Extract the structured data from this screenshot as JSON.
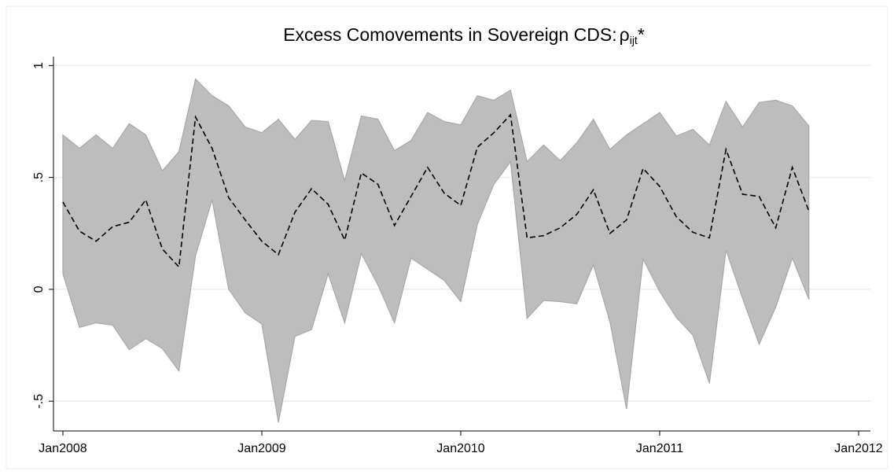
{
  "chart_data": {
    "type": "line",
    "title": "Excess Comovements in Sovereign CDS:",
    "title_symbol": "ρ",
    "title_subscript": "ijt",
    "title_suffix": "*",
    "x": [
      "2008-01",
      "2008-02",
      "2008-03",
      "2008-04",
      "2008-05",
      "2008-06",
      "2008-07",
      "2008-08",
      "2008-09",
      "2008-10",
      "2008-11",
      "2008-12",
      "2009-01",
      "2009-02",
      "2009-03",
      "2009-04",
      "2009-05",
      "2009-06",
      "2009-07",
      "2009-08",
      "2009-09",
      "2009-10",
      "2009-11",
      "2009-12",
      "2010-01",
      "2010-02",
      "2010-03",
      "2010-04",
      "2010-05",
      "2010-06",
      "2010-07",
      "2010-08",
      "2010-09",
      "2010-10",
      "2010-11",
      "2010-12",
      "2011-01",
      "2011-02",
      "2011-03",
      "2011-04",
      "2011-05",
      "2011-06",
      "2011-07",
      "2011-08",
      "2011-09",
      "2011-10"
    ],
    "band": {
      "color": "#bdbdbd",
      "edge_color": "#a8a8a8",
      "upper": [
        0.69,
        0.63,
        0.69,
        0.63,
        0.74,
        0.69,
        0.53,
        0.615,
        0.94,
        0.865,
        0.82,
        0.725,
        0.7,
        0.76,
        0.67,
        0.755,
        0.75,
        0.485,
        0.775,
        0.76,
        0.62,
        0.665,
        0.79,
        0.75,
        0.735,
        0.865,
        0.845,
        0.89,
        0.57,
        0.645,
        0.575,
        0.655,
        0.76,
        0.625,
        0.69,
        0.74,
        0.79,
        0.685,
        0.715,
        0.645,
        0.84,
        0.725,
        0.835,
        0.845,
        0.82,
        0.73
      ],
      "lower": [
        0.07,
        -0.17,
        -0.15,
        -0.16,
        -0.27,
        -0.22,
        -0.265,
        -0.365,
        0.15,
        0.4,
        0.0,
        -0.105,
        -0.155,
        -0.595,
        -0.21,
        -0.18,
        0.07,
        -0.15,
        0.16,
        0.02,
        -0.15,
        0.14,
        0.09,
        0.04,
        -0.055,
        0.29,
        0.47,
        0.57,
        -0.13,
        -0.05,
        -0.055,
        -0.065,
        0.11,
        -0.145,
        -0.535,
        0.135,
        -0.01,
        -0.125,
        -0.205,
        -0.42,
        0.175,
        -0.04,
        -0.245,
        -0.08,
        0.14,
        -0.045
      ]
    },
    "series": [
      {
        "color": "#000000",
        "dashed": true,
        "values": [
          0.39,
          0.26,
          0.215,
          0.28,
          0.3,
          0.4,
          0.18,
          0.1,
          0.77,
          0.63,
          0.41,
          0.31,
          0.215,
          0.155,
          0.345,
          0.45,
          0.38,
          0.22,
          0.52,
          0.47,
          0.285,
          0.415,
          0.545,
          0.43,
          0.375,
          0.635,
          0.7,
          0.78,
          0.23,
          0.24,
          0.275,
          0.335,
          0.445,
          0.25,
          0.31,
          0.54,
          0.46,
          0.325,
          0.255,
          0.23,
          0.625,
          0.425,
          0.415,
          0.275,
          0.545,
          0.35
        ]
      }
    ],
    "xlim": [
      "2008-01",
      "2012-01"
    ],
    "xticks": [
      {
        "value": "2008-01",
        "label": "Jan2008"
      },
      {
        "value": "2009-01",
        "label": "Jan2009"
      },
      {
        "value": "2010-01",
        "label": "Jan2010"
      },
      {
        "value": "2011-01",
        "label": "Jan2011"
      },
      {
        "value": "2012-01",
        "label": "Jan2012"
      }
    ],
    "ylim": [
      -0.633,
      1.04
    ],
    "yticks": [
      {
        "value": -0.5,
        "label": "-.5"
      },
      0,
      {
        "value": 0.5,
        "label": ".5"
      },
      1
    ],
    "grid": true
  }
}
